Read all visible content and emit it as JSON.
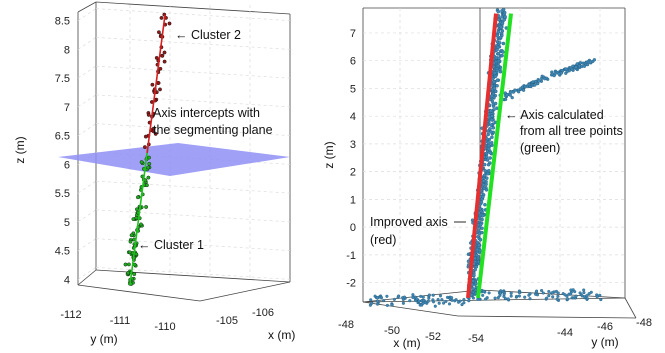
{
  "chart_data": [
    {
      "type": "scatter",
      "title": "",
      "zlabel": "z (m)",
      "xlabel": "x (m)",
      "ylabel": "y (m)",
      "z_ticks": [
        "4",
        "4.5",
        "5",
        "5.5",
        "6",
        "6.5",
        "7",
        "7.5",
        "8",
        "8.5"
      ],
      "y_ticks": [
        "-112",
        "-111",
        "-110"
      ],
      "x_ticks": [
        "-105",
        "-106"
      ],
      "zlim": [
        3.85,
        8.65
      ],
      "segmenting_plane_z": 6.2,
      "series": [
        {
          "name": "Cluster 1",
          "color": "#1faa1f",
          "z_range": [
            3.9,
            6.2
          ],
          "points": 85
        },
        {
          "name": "Cluster 2",
          "color": "#8b1a1a",
          "z_range": [
            6.3,
            8.6
          ],
          "points": 45
        }
      ],
      "axis_lines": [
        {
          "color": "#1cc41c",
          "z_from": 3.9,
          "z_to": 6.3
        },
        {
          "color": "#d81e1e",
          "z_from": 6.2,
          "z_to": 8.6
        }
      ],
      "plane_color": "#8f8ff5",
      "annotations": {
        "cluster2": "← Cluster 2",
        "intercept_line1": "Axis intercepts with",
        "intercept_line2": "the segmenting plane",
        "cluster1": "← Cluster 1"
      }
    },
    {
      "type": "scatter",
      "title": "",
      "zlabel": "z (m)",
      "xlabel": "x (m)",
      "ylabel": "y (m)",
      "z_ticks": [
        "-2",
        "-1",
        "0",
        "1",
        "2",
        "3",
        "4",
        "5",
        "6",
        "7"
      ],
      "x_ticks": [
        "-48",
        "-50",
        "-52",
        "-54"
      ],
      "y_ticks": [
        "-44",
        "-46",
        "-48"
      ],
      "zlim": [
        -2.7,
        7.9
      ],
      "series": [
        {
          "name": "tree points",
          "color": "#3f88b5"
        }
      ],
      "axis_lines": [
        {
          "name": "Improved axis (red)",
          "color": "#e63030",
          "z_from": -2.55,
          "z_to": 7.7
        },
        {
          "name": "Axis calculated from all tree points (green)",
          "color": "#22e022",
          "z_from": -2.55,
          "z_to": 7.7
        }
      ],
      "annotations": {
        "green_line1": "← Axis calculated",
        "green_line2": "from all tree points",
        "green_line3": "(green)",
        "red_line1": "Improved axis",
        "red_line2": "(red)"
      }
    }
  ]
}
